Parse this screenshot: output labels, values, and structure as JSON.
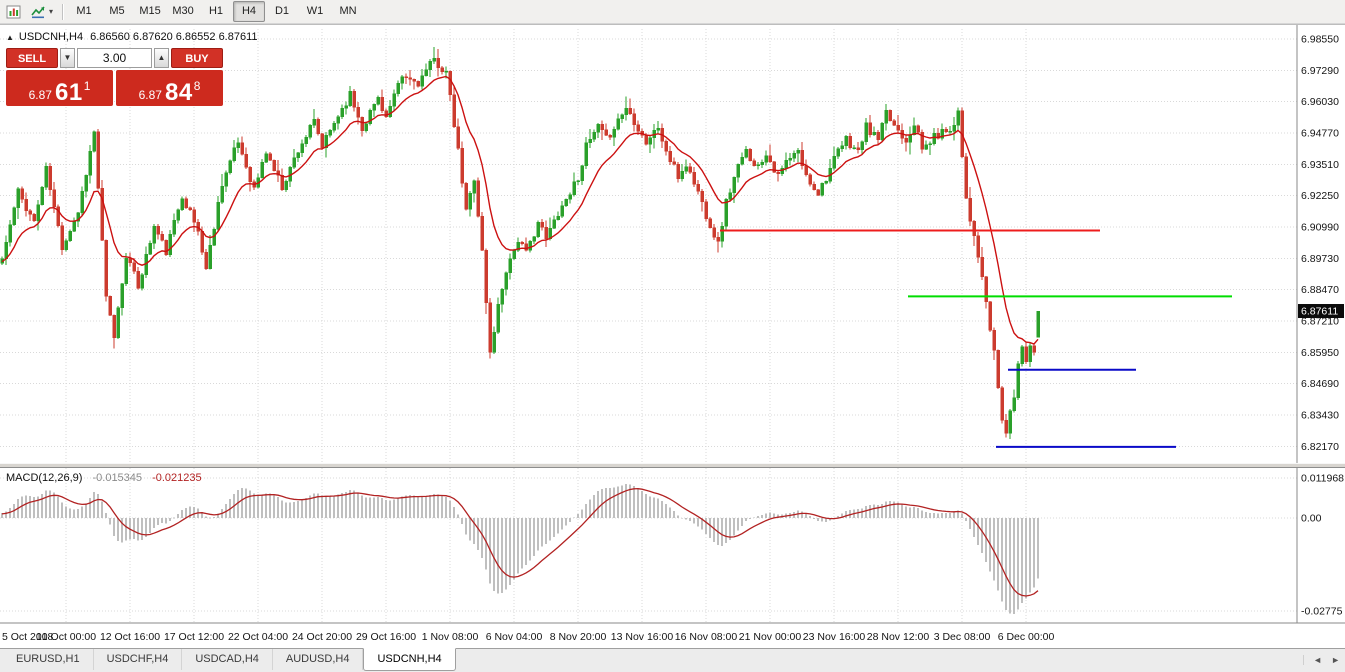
{
  "icons": {
    "collapse_arrow": "▲",
    "toolbar_caret": "▾",
    "spinner_down": "▼",
    "spinner_up": "▲",
    "tabs_left": "◄",
    "tabs_right": "►"
  },
  "toolbar": {
    "timeframes": [
      {
        "label": "M1",
        "active": false
      },
      {
        "label": "M5",
        "active": false
      },
      {
        "label": "M15",
        "active": false
      },
      {
        "label": "M30",
        "active": false
      },
      {
        "label": "H1",
        "active": false
      },
      {
        "label": "H4",
        "active": true
      },
      {
        "label": "D1",
        "active": false
      },
      {
        "label": "W1",
        "active": false
      },
      {
        "label": "MN",
        "active": false
      }
    ]
  },
  "chart_header": {
    "symbol_period": "USDCNH,H4",
    "ohlc": "6.86560 6.87620 6.86552 6.87611"
  },
  "one_click": {
    "sell_label": "SELL",
    "buy_label": "BUY",
    "volume": "3.00",
    "sell_price_small": "6.87",
    "sell_price_big": "61",
    "sell_price_sup": "1",
    "buy_price_small": "6.87",
    "buy_price_big": "84",
    "buy_price_sup": "8"
  },
  "chart_data": {
    "type": "candlestick",
    "symbol": "USDCNH",
    "timeframe": "H4",
    "title": "USDCNH,H4",
    "candle_count": 260,
    "price_axis": {
      "min": 6.815,
      "max": 6.9895,
      "labels": [
        "6.98550",
        "6.97290",
        "6.96030",
        "6.94770",
        "6.93510",
        "6.92250",
        "6.90990",
        "6.89730",
        "6.88470",
        "6.87210",
        "6.85950",
        "6.84690",
        "6.83430",
        "6.82170"
      ]
    },
    "time_axis": {
      "candles_per_label": 16,
      "labels": [
        "5 Oct 2018",
        "10 Oct 00:00",
        "12 Oct 16:00",
        "17 Oct 12:00",
        "22 Oct 04:00",
        "24 Oct 20:00",
        "29 Oct 16:00",
        "1 Nov 08:00",
        "6 Nov 04:00",
        "8 Nov 20:00",
        "13 Nov 16:00",
        "16 Nov 08:00",
        "21 Nov 00:00",
        "23 Nov 16:00",
        "28 Nov 12:00",
        "3 Dec 08:00",
        "6 Dec 00:00"
      ]
    },
    "current_price": 6.87611,
    "current_price_label": "6.87611",
    "last_candle": {
      "open": 6.8656,
      "high": 6.8762,
      "low": 6.86552,
      "close": 6.87611
    },
    "close_anchors": [
      [
        0,
        6.897
      ],
      [
        4,
        6.924
      ],
      [
        8,
        6.912
      ],
      [
        11,
        6.933
      ],
      [
        15,
        6.902
      ],
      [
        19,
        6.916
      ],
      [
        23,
        6.948
      ],
      [
        26,
        6.881
      ],
      [
        28,
        6.866
      ],
      [
        31,
        6.899
      ],
      [
        34,
        6.886
      ],
      [
        38,
        6.91
      ],
      [
        41,
        6.9
      ],
      [
        45,
        6.923
      ],
      [
        49,
        6.908
      ],
      [
        51,
        6.893
      ],
      [
        55,
        6.928
      ],
      [
        59,
        6.944
      ],
      [
        63,
        6.925
      ],
      [
        66,
        6.94
      ],
      [
        70,
        6.926
      ],
      [
        74,
        6.941
      ],
      [
        78,
        6.952
      ],
      [
        80,
        6.942
      ],
      [
        84,
        6.955
      ],
      [
        87,
        6.963
      ],
      [
        90,
        6.95
      ],
      [
        94,
        6.962
      ],
      [
        96,
        6.954
      ],
      [
        100,
        6.97
      ],
      [
        104,
        6.968
      ],
      [
        108,
        6.977
      ],
      [
        111,
        6.972
      ],
      [
        114,
        6.94
      ],
      [
        116,
        6.916
      ],
      [
        118,
        6.93
      ],
      [
        120,
        6.9
      ],
      [
        122,
        6.859
      ],
      [
        124,
        6.878
      ],
      [
        126,
        6.893
      ],
      [
        129,
        6.905
      ],
      [
        131,
        6.899
      ],
      [
        134,
        6.912
      ],
      [
        136,
        6.905
      ],
      [
        139,
        6.916
      ],
      [
        141,
        6.921
      ],
      [
        144,
        6.93
      ],
      [
        146,
        6.942
      ],
      [
        149,
        6.95
      ],
      [
        151,
        6.945
      ],
      [
        154,
        6.953
      ],
      [
        156,
        6.958
      ],
      [
        159,
        6.95
      ],
      [
        161,
        6.944
      ],
      [
        164,
        6.95
      ],
      [
        166,
        6.94
      ],
      [
        169,
        6.93
      ],
      [
        171,
        6.935
      ],
      [
        174,
        6.924
      ],
      [
        176,
        6.915
      ],
      [
        179,
        6.903
      ],
      [
        181,
        6.92
      ],
      [
        184,
        6.934
      ],
      [
        186,
        6.94
      ],
      [
        189,
        6.934
      ],
      [
        191,
        6.94
      ],
      [
        194,
        6.93
      ],
      [
        196,
        6.936
      ],
      [
        199,
        6.94
      ],
      [
        201,
        6.93
      ],
      [
        204,
        6.924
      ],
      [
        206,
        6.93
      ],
      [
        209,
        6.94
      ],
      [
        211,
        6.945
      ],
      [
        214,
        6.94
      ],
      [
        216,
        6.95
      ],
      [
        219,
        6.945
      ],
      [
        221,
        6.955
      ],
      [
        224,
        6.949
      ],
      [
        226,
        6.945
      ],
      [
        228,
        6.952
      ],
      [
        230,
        6.941
      ],
      [
        233,
        6.946
      ],
      [
        235,
        6.948
      ],
      [
        238,
        6.951
      ],
      [
        239,
        6.957
      ],
      [
        241,
        6.922
      ],
      [
        243,
        6.905
      ],
      [
        245,
        6.89
      ],
      [
        246,
        6.878
      ],
      [
        248,
        6.86
      ],
      [
        249,
        6.845
      ],
      [
        250,
        6.833
      ],
      [
        251,
        6.827
      ],
      [
        253,
        6.842
      ],
      [
        254,
        6.855
      ],
      [
        255,
        6.862
      ],
      [
        256,
        6.857
      ],
      [
        257,
        6.863
      ],
      [
        258,
        6.859
      ],
      [
        259,
        6.876
      ]
    ],
    "ma": {
      "period": 13,
      "color": "#cc1111"
    },
    "colors": {
      "bull": "#2aa02a",
      "bear": "#cc3b2e",
      "grid": "#d9d9d9",
      "axis_text": "#141414",
      "badge_bg": "#0b0b0b",
      "background": "#ffffff"
    },
    "h_lines": [
      {
        "color": "#ee1c1c",
        "price": 6.9085,
        "from_index": 180,
        "to_index": 275
      },
      {
        "color": "#00dd00",
        "price": 6.882,
        "from_index": 227,
        "to_index": 308
      },
      {
        "color": "#0a0ac8",
        "price": 6.8525,
        "from_index": 252,
        "to_index": 284
      },
      {
        "color": "#0a0ac8",
        "price": 6.8215,
        "from_index": 249,
        "to_index": 294
      }
    ],
    "macd": {
      "name": "MACD(12,26,9)",
      "value_main": "-0.015345",
      "value_signal": "-0.021235",
      "fast": 12,
      "slow": 26,
      "signal": 9,
      "scale_max": 0.015,
      "scale_min": -0.031,
      "axis_labels": [
        {
          "value": 0.011968,
          "text": "0.011968"
        },
        {
          "value": 0,
          "text": "0.00"
        },
        {
          "value": -0.02775,
          "text": "-0.02775"
        }
      ],
      "histogram_color": "#bfbfbf",
      "signal_color": "#b22222"
    }
  },
  "tabs": {
    "items": [
      {
        "label": "EURUSD,H1",
        "active": false
      },
      {
        "label": "USDCHF,H4",
        "active": false
      },
      {
        "label": "USDCAD,H4",
        "active": false
      },
      {
        "label": "AUDUSD,H4",
        "active": false
      },
      {
        "label": "USDCNH,H4",
        "active": true
      }
    ]
  }
}
